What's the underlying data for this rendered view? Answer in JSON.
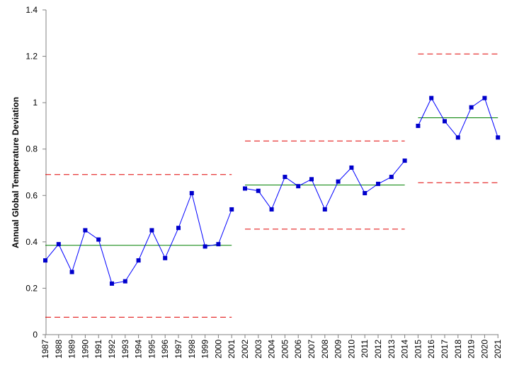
{
  "chart_data": {
    "type": "line",
    "title": "",
    "xlabel": "",
    "ylabel": "Annual Global Temperature Deviation",
    "ylim": [
      0,
      1.4
    ],
    "yticks": [
      0,
      0.2,
      0.4,
      0.6,
      0.8,
      1,
      1.2,
      1.4
    ],
    "ytick_labels": [
      "0",
      "0.2",
      "0.4",
      "0.6",
      "0.8",
      "1",
      "1.2",
      "1.4"
    ],
    "categories": [
      "1987",
      "1988",
      "1989",
      "1990",
      "1991",
      "1992",
      "1993",
      "1994",
      "1995",
      "1996",
      "1997",
      "1998",
      "1999",
      "2000",
      "2001",
      "2002",
      "2003",
      "2004",
      "2005",
      "2006",
      "2007",
      "2008",
      "2009",
      "2010",
      "2011",
      "2012",
      "2013",
      "2014",
      "2015",
      "2016",
      "2017",
      "2018",
      "2019",
      "2020",
      "2021"
    ],
    "grid": false,
    "legend": "none",
    "colors": {
      "series": "#0000ff",
      "marker": "#0000cc",
      "center_line": "#008000",
      "control_limits": "#e00000",
      "axis": "#808080"
    },
    "series": [
      {
        "segments": [
          {
            "start": "1987",
            "end": "2001",
            "values": [
              0.32,
              0.39,
              0.27,
              0.45,
              0.41,
              0.22,
              0.23,
              0.32,
              0.45,
              0.33,
              0.46,
              0.61,
              0.38,
              0.39,
              0.54
            ]
          },
          {
            "start": "2002",
            "end": "2014",
            "values": [
              0.63,
              0.62,
              0.54,
              0.68,
              0.64,
              0.67,
              0.54,
              0.66,
              0.72,
              0.61,
              0.65,
              0.68,
              0.75
            ]
          },
          {
            "start": "2015",
            "end": "2021",
            "values": [
              0.9,
              1.02,
              0.92,
              0.85,
              0.98,
              1.02,
              0.85
            ]
          }
        ]
      }
    ],
    "reference_lines": [
      {
        "kind": "center",
        "start": "1987",
        "end": "2001",
        "value": 0.385
      },
      {
        "kind": "upper",
        "start": "1987",
        "end": "2001",
        "value": 0.69
      },
      {
        "kind": "lower",
        "start": "1987",
        "end": "2001",
        "value": 0.075
      },
      {
        "kind": "center",
        "start": "2002",
        "end": "2014",
        "value": 0.645
      },
      {
        "kind": "upper",
        "start": "2002",
        "end": "2014",
        "value": 0.835
      },
      {
        "kind": "lower",
        "start": "2002",
        "end": "2014",
        "value": 0.455
      },
      {
        "kind": "center",
        "start": "2015",
        "end": "2021",
        "value": 0.935
      },
      {
        "kind": "upper",
        "start": "2015",
        "end": "2021",
        "value": 1.21
      },
      {
        "kind": "lower",
        "start": "2015",
        "end": "2021",
        "value": 0.655
      }
    ]
  }
}
